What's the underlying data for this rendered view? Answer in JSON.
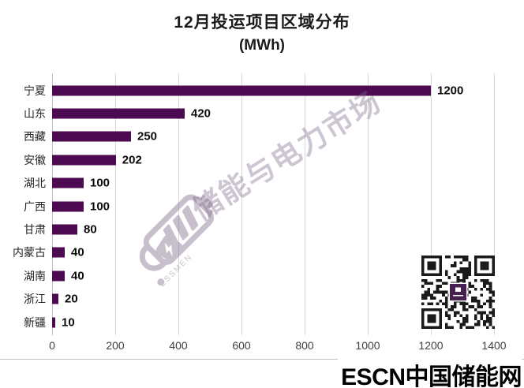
{
  "title": {
    "line1": "12月投运项目区域分布",
    "line2": "(MWh)"
  },
  "chart_data": {
    "type": "bar",
    "orientation": "horizontal",
    "title": "12月投运项目区域分布",
    "unit": "MWh",
    "categories": [
      "宁夏",
      "山东",
      "西藏",
      "安徽",
      "湖北",
      "广西",
      "甘肃",
      "内蒙古",
      "湖南",
      "浙江",
      "新疆"
    ],
    "values": [
      1200,
      420,
      250,
      202,
      100,
      100,
      80,
      40,
      40,
      20,
      10
    ],
    "xlim": [
      0,
      1400
    ],
    "x_ticks": [
      0,
      200,
      400,
      600,
      800,
      1000,
      1200,
      1400
    ],
    "grid": "vertical",
    "legend": "none",
    "data_labels": true,
    "bar_color": "#4D0A51"
  },
  "watermark": {
    "text": "储能与电力市场",
    "logo": "battery-lightning",
    "logo_caption": "ESSMEN"
  },
  "footer": {
    "brand": "ESCN中国储能网",
    "brand_color": "#E60012"
  }
}
